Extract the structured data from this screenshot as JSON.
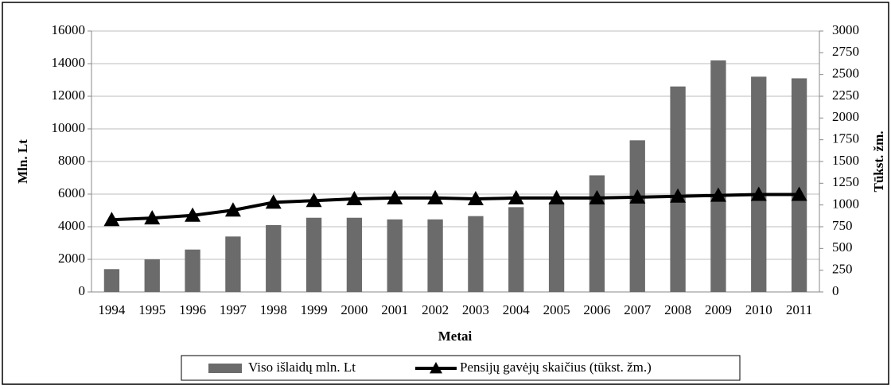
{
  "chart_data": {
    "type": "bar",
    "xlabel": "Metai",
    "ylabel": "Mln. Lt",
    "y2label": "Tūkst. žm.",
    "categories": [
      "1994",
      "1995",
      "1996",
      "1997",
      "1998",
      "1999",
      "2000",
      "2001",
      "2002",
      "2003",
      "2004",
      "2005",
      "2006",
      "2007",
      "2008",
      "2009",
      "2010",
      "2011"
    ],
    "series": [
      {
        "name": "Viso išlaidų mln. Lt",
        "type": "bar",
        "color": "#6b6b6b",
        "values": [
          1400,
          2000,
          2600,
          3400,
          4100,
          4550,
          4550,
          4450,
          4450,
          4650,
          5200,
          5500,
          7150,
          9300,
          12600,
          14200,
          13200,
          13100
        ]
      },
      {
        "name": "Pensijų gavėjų skaičius (tūkst. žm.)",
        "type": "line",
        "axis": "y2",
        "color": "#000000",
        "values": [
          830,
          850,
          880,
          940,
          1030,
          1050,
          1070,
          1080,
          1080,
          1070,
          1080,
          1080,
          1080,
          1090,
          1100,
          1110,
          1120,
          1120
        ]
      }
    ],
    "ylim": [
      0,
      16000
    ],
    "yticks": [
      0,
      2000,
      4000,
      6000,
      8000,
      10000,
      12000,
      14000,
      16000
    ],
    "y2lim": [
      0,
      3000
    ],
    "y2ticks": [
      0,
      250,
      500,
      750,
      1000,
      1250,
      1500,
      1750,
      2000,
      2250,
      2500,
      2750,
      3000
    ],
    "grid": true,
    "legend": "bottom"
  }
}
